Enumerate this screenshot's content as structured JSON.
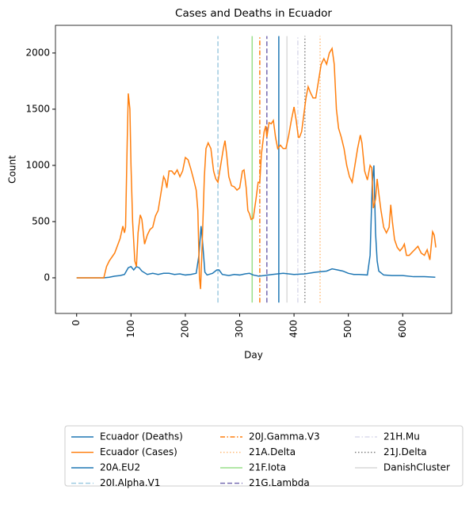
{
  "chart_data": {
    "type": "line",
    "title": "Cases and Deaths in Ecuador",
    "x_label": "Day",
    "y_label": "Count",
    "xlim": [
      -39,
      690
    ],
    "ylim": [
      -317,
      2246
    ],
    "xticks": [
      0,
      100,
      200,
      300,
      400,
      500,
      600
    ],
    "yticks": [
      0,
      500,
      1000,
      1500,
      2000
    ],
    "vline_range": [
      -220,
      2150
    ],
    "series": [
      {
        "name": "Ecuador (Deaths)",
        "color": "#1f77b4",
        "x": [
          0,
          50,
          60,
          70,
          80,
          88,
          95,
          100,
          105,
          110,
          115,
          120,
          130,
          140,
          150,
          160,
          170,
          180,
          190,
          200,
          210,
          220,
          225,
          229,
          232,
          236,
          240,
          250,
          258,
          262,
          268,
          280,
          290,
          300,
          310,
          318,
          325,
          335,
          345,
          360,
          380,
          400,
          420,
          440,
          460,
          470,
          480,
          490,
          500,
          510,
          520,
          535,
          540,
          544,
          547,
          550,
          553,
          556,
          565,
          580,
          600,
          620,
          640,
          660
        ],
        "values": [
          0,
          0,
          5,
          15,
          20,
          30,
          90,
          100,
          70,
          100,
          90,
          60,
          30,
          40,
          30,
          40,
          40,
          30,
          35,
          25,
          30,
          40,
          200,
          460,
          300,
          50,
          25,
          40,
          70,
          70,
          30,
          20,
          30,
          25,
          35,
          40,
          25,
          15,
          20,
          30,
          40,
          30,
          35,
          50,
          60,
          80,
          70,
          60,
          40,
          30,
          30,
          25,
          200,
          850,
          1000,
          400,
          150,
          60,
          25,
          20,
          20,
          10,
          10,
          5
        ]
      },
      {
        "name": "Ecuador (Cases)",
        "color": "#ff7f0e",
        "x": [
          0,
          50,
          55,
          60,
          70,
          80,
          85,
          88,
          90,
          93,
          95,
          98,
          100,
          103,
          107,
          110,
          113,
          117,
          120,
          125,
          130,
          135,
          140,
          145,
          150,
          155,
          160,
          163,
          166,
          170,
          175,
          180,
          185,
          190,
          195,
          200,
          205,
          210,
          215,
          220,
          223,
          226,
          228,
          231,
          235,
          238,
          242,
          247,
          252,
          256,
          260,
          265,
          270,
          273,
          276,
          280,
          285,
          290,
          295,
          300,
          305,
          308,
          312,
          315,
          318,
          321,
          325,
          330,
          334,
          337,
          340,
          345,
          348,
          350,
          354,
          358,
          362,
          366,
          370,
          375,
          380,
          385,
          390,
          395,
          400,
          404,
          408,
          410,
          414,
          418,
          422,
          426,
          430,
          435,
          440,
          445,
          450,
          455,
          460,
          465,
          470,
          474,
          478,
          482,
          487,
          492,
          497,
          502,
          507,
          512,
          517,
          522,
          525,
          530,
          535,
          540,
          543,
          546,
          550,
          553,
          556,
          560,
          565,
          570,
          575,
          578,
          581,
          585,
          590,
          595,
          600,
          603,
          607,
          612,
          620,
          628,
          634,
          640,
          645,
          650,
          655,
          658,
          661
        ],
        "values": [
          0,
          0,
          100,
          150,
          220,
          350,
          460,
          400,
          450,
          1200,
          1640,
          1500,
          1000,
          500,
          150,
          100,
          400,
          560,
          520,
          300,
          380,
          430,
          450,
          550,
          600,
          750,
          900,
          870,
          800,
          950,
          950,
          920,
          960,
          900,
          950,
          1070,
          1050,
          970,
          880,
          780,
          600,
          0,
          -100,
          300,
          900,
          1150,
          1200,
          1150,
          950,
          880,
          850,
          1000,
          1150,
          1220,
          1100,
          900,
          820,
          810,
          780,
          800,
          950,
          960,
          800,
          600,
          570,
          520,
          530,
          700,
          850,
          850,
          1100,
          1300,
          1350,
          1250,
          1380,
          1370,
          1400,
          1250,
          1150,
          1180,
          1150,
          1150,
          1260,
          1400,
          1520,
          1400,
          1250,
          1250,
          1300,
          1450,
          1600,
          1700,
          1650,
          1600,
          1600,
          1750,
          1900,
          1950,
          1900,
          2000,
          2040,
          1900,
          1500,
          1330,
          1250,
          1150,
          1000,
          900,
          850,
          1000,
          1150,
          1270,
          1200,
          950,
          870,
          1000,
          980,
          620,
          700,
          880,
          750,
          600,
          450,
          400,
          450,
          650,
          500,
          340,
          270,
          240,
          270,
          300,
          200,
          200,
          240,
          280,
          220,
          200,
          250,
          160,
          410,
          380,
          270
        ]
      }
    ],
    "vlines": [
      {
        "name": "20A.EU2",
        "color": "#1f77b4",
        "style": "solid",
        "x": 372
      },
      {
        "name": "20I.Alpha.V1",
        "color": "#9ecae1",
        "style": "dashed",
        "x": 260
      },
      {
        "name": "20J.Gamma.V3",
        "color": "#ff7f0e",
        "style": "dashdot",
        "x": 337
      },
      {
        "name": "21A.Delta",
        "color": "#ffbb78",
        "style": "dotted",
        "x": 448
      },
      {
        "name": "21F.Iota",
        "color": "#98df8a",
        "style": "solid",
        "x": 323
      },
      {
        "name": "21G.Lambda",
        "color": "#756bb1",
        "style": "dashed",
        "x": 350
      },
      {
        "name": "21H.Mu",
        "color": "#dadaeb",
        "style": "dashdot",
        "x": 407
      },
      {
        "name": "21J.Delta",
        "color": "#7f7f7f",
        "style": "dotted",
        "x": 420
      },
      {
        "name": "DanishCluster",
        "color": "#d9d9d9",
        "style": "solid",
        "x": 387
      }
    ]
  }
}
